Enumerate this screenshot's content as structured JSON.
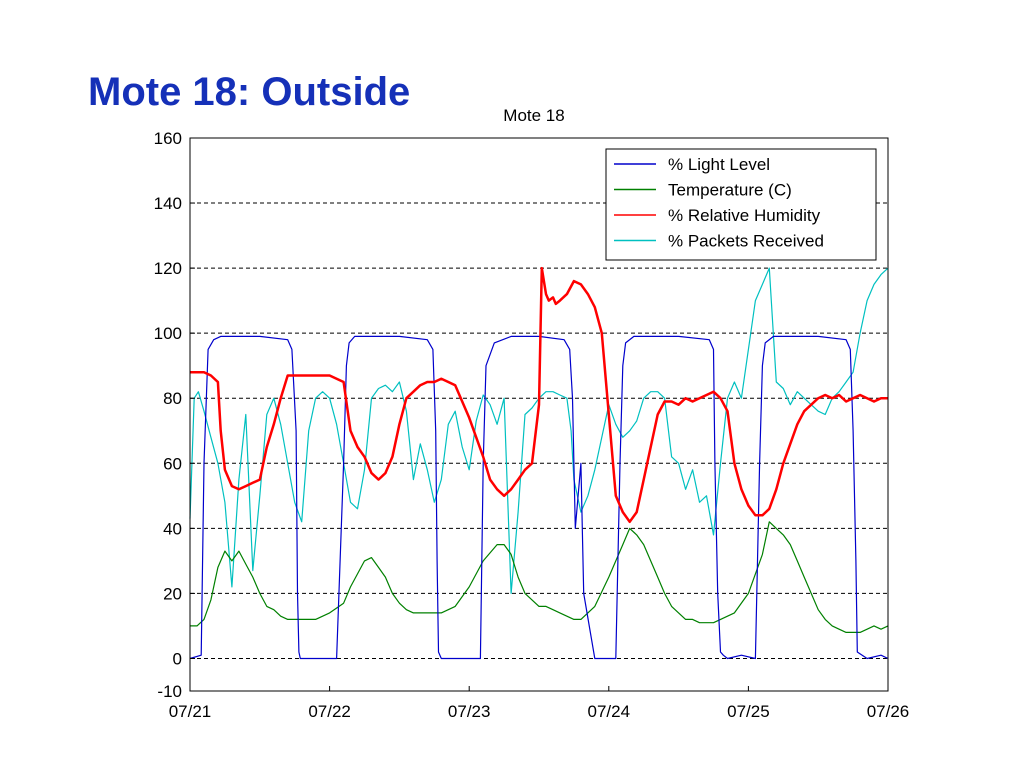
{
  "slide_title": "Mote 18: Outside",
  "chart_data": {
    "type": "line",
    "title": "Mote 18",
    "xlabel": "",
    "ylabel": "",
    "x_tick_labels": [
      "07/21",
      "07/22",
      "07/23",
      "07/24",
      "07/25",
      "07/26"
    ],
    "x_range_days": [
      0,
      5
    ],
    "ylim": [
      -10,
      160
    ],
    "y_ticks": [
      -10,
      0,
      20,
      40,
      60,
      80,
      100,
      120,
      140,
      160
    ],
    "grid": "horizontal dashed at each labeled y tick",
    "legend_position": "top-right",
    "series": [
      {
        "name": "% Light Level",
        "color": "#0000cc",
        "x": [
          0,
          0.08,
          0.1,
          0.13,
          0.17,
          0.22,
          0.3,
          0.5,
          0.7,
          0.73,
          0.76,
          0.77,
          0.78,
          0.79,
          0.85,
          0.95,
          1.05,
          1.1,
          1.12,
          1.14,
          1.18,
          1.25,
          1.5,
          1.7,
          1.74,
          1.76,
          1.77,
          1.78,
          1.8,
          2.0,
          2.08,
          2.1,
          2.12,
          2.18,
          2.3,
          2.5,
          2.68,
          2.72,
          2.74,
          2.76,
          2.77,
          2.8,
          2.82,
          2.9,
          2.95,
          3.0,
          3.05,
          3.08,
          3.1,
          3.12,
          3.18,
          3.3,
          3.5,
          3.72,
          3.75,
          3.76,
          3.78,
          3.8,
          3.82,
          3.85,
          3.95,
          4.05,
          4.08,
          4.1,
          4.12,
          4.18,
          4.3,
          4.5,
          4.7,
          4.73,
          4.75,
          4.77,
          4.78,
          4.85,
          4.95,
          5.0
        ],
        "y": [
          0,
          1,
          60,
          95,
          98,
          99,
          99,
          99,
          98,
          95,
          70,
          20,
          2,
          0,
          0,
          0,
          0,
          60,
          90,
          97,
          99,
          99,
          99,
          98,
          95,
          70,
          30,
          2,
          0,
          0,
          0,
          60,
          90,
          97,
          99,
          99,
          98,
          95,
          80,
          40,
          45,
          60,
          20,
          0,
          0,
          0,
          0,
          60,
          90,
          97,
          99,
          99,
          99,
          98,
          95,
          60,
          20,
          2,
          1,
          0,
          1,
          0,
          60,
          90,
          97,
          99,
          99,
          99,
          98,
          95,
          70,
          30,
          2,
          0,
          1,
          0
        ]
      },
      {
        "name": "Temperature (C)",
        "color": "#008000",
        "x": [
          0,
          0.05,
          0.1,
          0.15,
          0.2,
          0.25,
          0.3,
          0.35,
          0.4,
          0.45,
          0.5,
          0.55,
          0.6,
          0.65,
          0.7,
          0.75,
          0.8,
          0.9,
          1.0,
          1.1,
          1.15,
          1.2,
          1.25,
          1.3,
          1.35,
          1.4,
          1.45,
          1.5,
          1.55,
          1.6,
          1.65,
          1.7,
          1.75,
          1.8,
          1.9,
          2.0,
          2.1,
          2.2,
          2.25,
          2.3,
          2.35,
          2.4,
          2.45,
          2.5,
          2.55,
          2.6,
          2.65,
          2.7,
          2.75,
          2.8,
          2.9,
          3.0,
          3.1,
          3.15,
          3.2,
          3.25,
          3.3,
          3.35,
          3.4,
          3.45,
          3.5,
          3.55,
          3.6,
          3.65,
          3.7,
          3.75,
          3.8,
          3.9,
          4.0,
          4.1,
          4.15,
          4.2,
          4.25,
          4.3,
          4.35,
          4.4,
          4.45,
          4.5,
          4.55,
          4.6,
          4.65,
          4.7,
          4.75,
          4.8,
          4.85,
          4.9,
          4.95,
          5.0
        ],
        "y": [
          10,
          10,
          12,
          18,
          28,
          33,
          30,
          33,
          29,
          25,
          20,
          16,
          15,
          13,
          12,
          12,
          12,
          12,
          14,
          17,
          22,
          26,
          30,
          31,
          28,
          25,
          20,
          17,
          15,
          14,
          14,
          14,
          14,
          14,
          16,
          22,
          30,
          35,
          35,
          32,
          25,
          20,
          18,
          16,
          16,
          15,
          14,
          13,
          12,
          12,
          16,
          25,
          35,
          40,
          38,
          35,
          30,
          25,
          20,
          16,
          14,
          12,
          12,
          11,
          11,
          11,
          12,
          14,
          20,
          32,
          42,
          40,
          38,
          35,
          30,
          25,
          20,
          15,
          12,
          10,
          9,
          8,
          8,
          8,
          9,
          10,
          9,
          10
        ]
      },
      {
        "name": "% Relative Humidity",
        "color": "#ff0000",
        "x": [
          0,
          0.05,
          0.1,
          0.15,
          0.2,
          0.22,
          0.25,
          0.3,
          0.35,
          0.4,
          0.45,
          0.5,
          0.55,
          0.6,
          0.65,
          0.7,
          0.75,
          0.8,
          0.9,
          1.0,
          1.1,
          1.15,
          1.2,
          1.25,
          1.3,
          1.35,
          1.4,
          1.45,
          1.5,
          1.55,
          1.6,
          1.65,
          1.7,
          1.75,
          1.8,
          1.9,
          2.0,
          2.1,
          2.15,
          2.2,
          2.25,
          2.3,
          2.35,
          2.4,
          2.45,
          2.5,
          2.52,
          2.55,
          2.57,
          2.6,
          2.62,
          2.65,
          2.7,
          2.75,
          2.8,
          2.85,
          2.9,
          2.95,
          3.0,
          3.05,
          3.1,
          3.15,
          3.2,
          3.25,
          3.3,
          3.35,
          3.4,
          3.45,
          3.5,
          3.55,
          3.6,
          3.65,
          3.7,
          3.75,
          3.8,
          3.85,
          3.9,
          3.95,
          4.0,
          4.05,
          4.1,
          4.15,
          4.2,
          4.25,
          4.3,
          4.35,
          4.4,
          4.45,
          4.5,
          4.55,
          4.6,
          4.65,
          4.7,
          4.75,
          4.8,
          4.85,
          4.9,
          4.95,
          5.0
        ],
        "y": [
          88,
          88,
          88,
          87,
          85,
          70,
          58,
          53,
          52,
          53,
          54,
          55,
          65,
          72,
          80,
          87,
          87,
          87,
          87,
          87,
          85,
          70,
          65,
          62,
          57,
          55,
          57,
          62,
          72,
          80,
          82,
          84,
          85,
          85,
          86,
          84,
          74,
          62,
          55,
          52,
          50,
          52,
          55,
          58,
          60,
          78,
          120,
          112,
          110,
          111,
          109,
          110,
          112,
          116,
          115,
          112,
          108,
          100,
          75,
          50,
          45,
          42,
          45,
          55,
          65,
          75,
          79,
          79,
          78,
          80,
          79,
          80,
          81,
          82,
          80,
          76,
          60,
          52,
          47,
          44,
          44,
          46,
          52,
          60,
          66,
          72,
          76,
          78,
          80,
          81,
          80,
          81,
          79,
          80,
          81,
          80,
          79,
          80,
          80
        ]
      },
      {
        "name": "% Packets Received",
        "color": "#00c0c0",
        "x": [
          0,
          0.03,
          0.06,
          0.1,
          0.15,
          0.2,
          0.25,
          0.3,
          0.35,
          0.4,
          0.45,
          0.5,
          0.55,
          0.6,
          0.65,
          0.7,
          0.75,
          0.8,
          0.85,
          0.9,
          0.95,
          1.0,
          1.05,
          1.1,
          1.15,
          1.2,
          1.25,
          1.3,
          1.35,
          1.4,
          1.45,
          1.5,
          1.55,
          1.6,
          1.65,
          1.7,
          1.75,
          1.8,
          1.85,
          1.9,
          1.95,
          2.0,
          2.05,
          2.1,
          2.15,
          2.2,
          2.25,
          2.3,
          2.35,
          2.4,
          2.45,
          2.5,
          2.55,
          2.6,
          2.65,
          2.7,
          2.73,
          2.75,
          2.8,
          2.85,
          2.9,
          2.95,
          3.0,
          3.05,
          3.1,
          3.15,
          3.2,
          3.25,
          3.3,
          3.35,
          3.4,
          3.45,
          3.5,
          3.55,
          3.6,
          3.65,
          3.7,
          3.75,
          3.8,
          3.85,
          3.9,
          3.95,
          4.0,
          4.05,
          4.1,
          4.15,
          4.2,
          4.25,
          4.3,
          4.35,
          4.4,
          4.45,
          4.5,
          4.55,
          4.6,
          4.65,
          4.7,
          4.75,
          4.8,
          4.85,
          4.9,
          4.95,
          5.0
        ],
        "y": [
          43,
          80,
          82,
          76,
          68,
          60,
          48,
          22,
          55,
          75,
          27,
          50,
          75,
          80,
          72,
          60,
          48,
          42,
          70,
          80,
          82,
          80,
          72,
          60,
          48,
          46,
          58,
          80,
          83,
          84,
          82,
          85,
          76,
          55,
          66,
          58,
          48,
          55,
          72,
          76,
          65,
          58,
          73,
          81,
          78,
          72,
          80,
          20,
          45,
          75,
          77,
          80,
          82,
          82,
          81,
          80,
          70,
          55,
          45,
          50,
          58,
          68,
          78,
          72,
          68,
          70,
          73,
          80,
          82,
          82,
          80,
          62,
          60,
          52,
          58,
          48,
          50,
          38,
          60,
          80,
          85,
          80,
          95,
          110,
          115,
          120,
          85,
          83,
          78,
          82,
          80,
          78,
          76,
          75,
          80,
          82,
          85,
          88,
          100,
          110,
          115,
          118,
          120
        ]
      }
    ]
  }
}
